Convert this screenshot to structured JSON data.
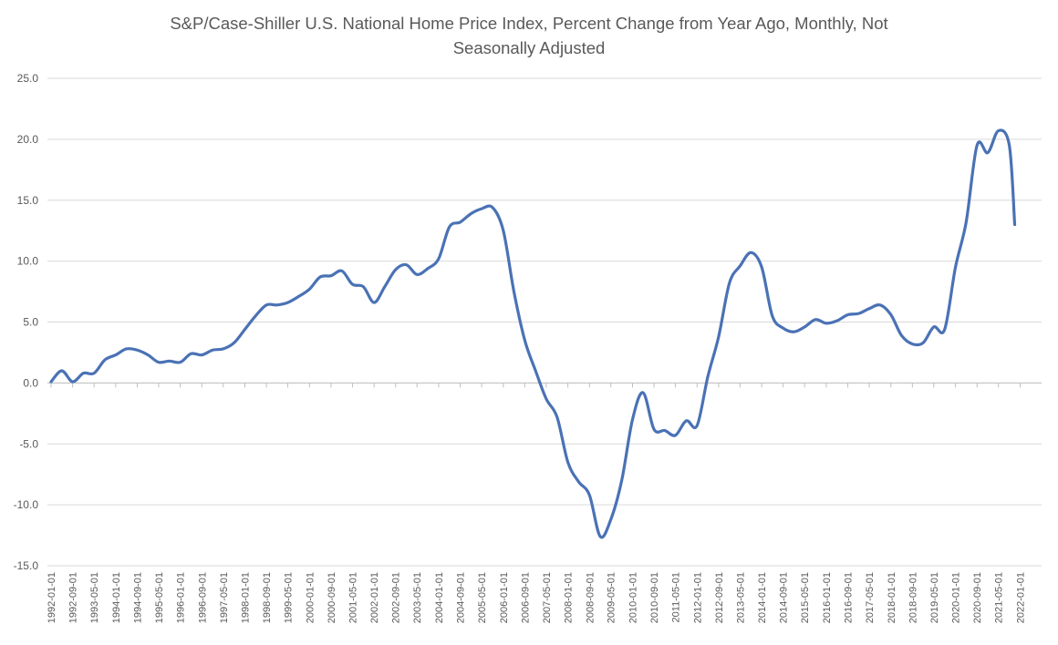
{
  "chart_data": {
    "type": "line",
    "title_line1": "S&P/Case-Shiller U.S. National Home Price Index, Percent Change from Year Ago, Monthly, Not",
    "title_line2": "Seasonally Adjusted",
    "xlabel": "",
    "ylabel": "",
    "ylim": [
      -15,
      25
    ],
    "y_ticks": [
      "25.0",
      "20.0",
      "15.0",
      "10.0",
      "5.0",
      "0.0",
      "-5.0",
      "-10.0",
      "-15.0"
    ],
    "grid": true,
    "legend": "none",
    "line_color": "#4a72b5",
    "x_tick_labels": [
      "1992-01-01",
      "1992-09-01",
      "1993-05-01",
      "1994-01-01",
      "1994-09-01",
      "1995-05-01",
      "1996-01-01",
      "1996-09-01",
      "1997-05-01",
      "1998-01-01",
      "1998-09-01",
      "1999-05-01",
      "2000-01-01",
      "2000-09-01",
      "2001-05-01",
      "2002-01-01",
      "2002-09-01",
      "2003-05-01",
      "2004-01-01",
      "2004-09-01",
      "2005-05-01",
      "2006-01-01",
      "2006-09-01",
      "2007-05-01",
      "2008-01-01",
      "2008-09-01",
      "2009-05-01",
      "2010-01-01",
      "2010-09-01",
      "2011-05-01",
      "2012-01-01",
      "2012-09-01",
      "2013-05-01",
      "2014-01-01",
      "2014-09-01",
      "2015-05-01",
      "2016-01-01",
      "2016-09-01",
      "2017-05-01",
      "2018-01-01",
      "2018-09-01",
      "2019-05-01",
      "2020-01-01",
      "2020-09-01",
      "2021-05-01",
      "2022-01-01"
    ],
    "series": [
      {
        "name": "Percent Change from Year Ago",
        "points": [
          [
            "1992-01-01",
            0.1
          ],
          [
            "1992-05-01",
            1.0
          ],
          [
            "1992-09-01",
            0.1
          ],
          [
            "1993-01-01",
            0.8
          ],
          [
            "1993-05-01",
            0.8
          ],
          [
            "1993-09-01",
            1.9
          ],
          [
            "1994-01-01",
            2.3
          ],
          [
            "1994-05-01",
            2.8
          ],
          [
            "1994-09-01",
            2.7
          ],
          [
            "1995-01-01",
            2.3
          ],
          [
            "1995-05-01",
            1.7
          ],
          [
            "1995-09-01",
            1.8
          ],
          [
            "1996-01-01",
            1.7
          ],
          [
            "1996-05-01",
            2.4
          ],
          [
            "1996-09-01",
            2.3
          ],
          [
            "1997-01-01",
            2.7
          ],
          [
            "1997-05-01",
            2.8
          ],
          [
            "1997-09-01",
            3.3
          ],
          [
            "1998-01-01",
            4.4
          ],
          [
            "1998-05-01",
            5.5
          ],
          [
            "1998-09-01",
            6.4
          ],
          [
            "1999-01-01",
            6.4
          ],
          [
            "1999-05-01",
            6.6
          ],
          [
            "1999-09-01",
            7.1
          ],
          [
            "2000-01-01",
            7.7
          ],
          [
            "2000-05-01",
            8.7
          ],
          [
            "2000-09-01",
            8.8
          ],
          [
            "2001-01-01",
            9.2
          ],
          [
            "2001-05-01",
            8.1
          ],
          [
            "2001-09-01",
            7.9
          ],
          [
            "2002-01-01",
            6.6
          ],
          [
            "2002-05-01",
            7.9
          ],
          [
            "2002-09-01",
            9.3
          ],
          [
            "2003-01-01",
            9.7
          ],
          [
            "2003-05-01",
            8.9
          ],
          [
            "2003-09-01",
            9.4
          ],
          [
            "2004-01-01",
            10.2
          ],
          [
            "2004-05-01",
            12.8
          ],
          [
            "2004-09-01",
            13.2
          ],
          [
            "2005-01-01",
            13.9
          ],
          [
            "2005-05-01",
            14.3
          ],
          [
            "2005-09-01",
            14.4
          ],
          [
            "2006-01-01",
            12.5
          ],
          [
            "2006-05-01",
            7.5
          ],
          [
            "2006-09-01",
            3.5
          ],
          [
            "2007-01-01",
            1.0
          ],
          [
            "2007-05-01",
            -1.3
          ],
          [
            "2007-09-01",
            -2.8
          ],
          [
            "2008-01-01",
            -6.5
          ],
          [
            "2008-05-01",
            -8.1
          ],
          [
            "2008-09-01",
            -9.2
          ],
          [
            "2009-01-01",
            -12.6
          ],
          [
            "2009-05-01",
            -11.2
          ],
          [
            "2009-09-01",
            -8.0
          ],
          [
            "2010-01-01",
            -3.0
          ],
          [
            "2010-05-01",
            -0.8
          ],
          [
            "2010-09-01",
            -3.8
          ],
          [
            "2011-01-01",
            -3.9
          ],
          [
            "2011-05-01",
            -4.3
          ],
          [
            "2011-09-01",
            -3.1
          ],
          [
            "2012-01-01",
            -3.5
          ],
          [
            "2012-05-01",
            0.5
          ],
          [
            "2012-09-01",
            3.8
          ],
          [
            "2013-01-01",
            8.2
          ],
          [
            "2013-05-01",
            9.6
          ],
          [
            "2013-09-01",
            10.7
          ],
          [
            "2014-01-01",
            9.5
          ],
          [
            "2014-05-01",
            5.5
          ],
          [
            "2014-09-01",
            4.5
          ],
          [
            "2015-01-01",
            4.2
          ],
          [
            "2015-05-01",
            4.6
          ],
          [
            "2015-09-01",
            5.2
          ],
          [
            "2016-01-01",
            4.9
          ],
          [
            "2016-05-01",
            5.1
          ],
          [
            "2016-09-01",
            5.6
          ],
          [
            "2017-01-01",
            5.7
          ],
          [
            "2017-05-01",
            6.1
          ],
          [
            "2017-09-01",
            6.4
          ],
          [
            "2018-01-01",
            5.6
          ],
          [
            "2018-05-01",
            3.9
          ],
          [
            "2018-09-01",
            3.2
          ],
          [
            "2019-01-01",
            3.3
          ],
          [
            "2019-05-01",
            4.6
          ],
          [
            "2019-09-01",
            4.4
          ],
          [
            "2020-01-01",
            9.5
          ],
          [
            "2020-05-01",
            13.2
          ],
          [
            "2020-09-01",
            19.5
          ],
          [
            "2021-01-01",
            18.9
          ],
          [
            "2021-05-01",
            20.7
          ],
          [
            "2021-09-01",
            19.5
          ],
          [
            "2021-11-01",
            13.0
          ]
        ]
      }
    ]
  }
}
